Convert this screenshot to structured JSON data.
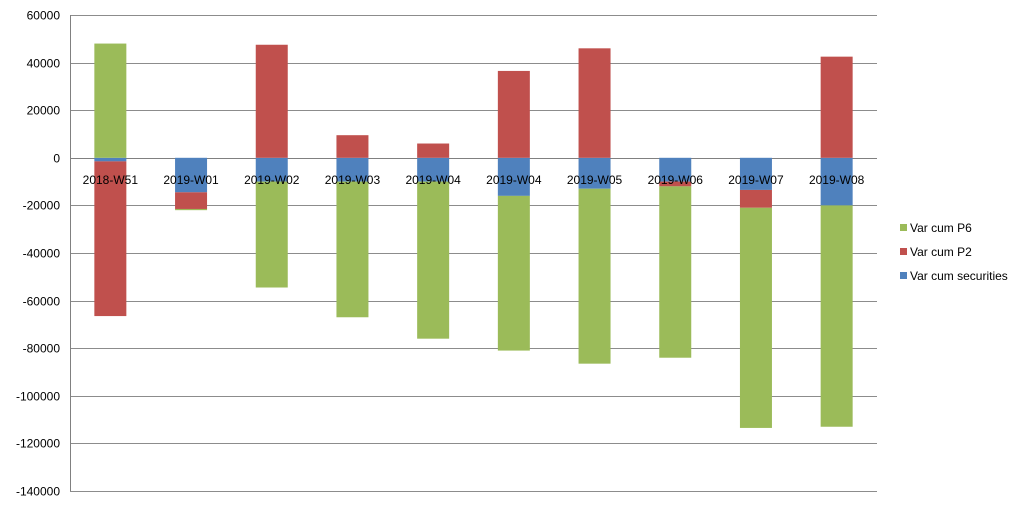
{
  "chart_data": {
    "type": "bar",
    "stacked": true,
    "categories": [
      "2018-W51",
      "2019-W01",
      "2019-W02",
      "2019-W03",
      "2019-W04",
      "2019-W04",
      "2019-W05",
      "2019-W06",
      "2019-W07",
      "2019-W08"
    ],
    "y_ticks": [
      60000,
      40000,
      20000,
      0,
      -20000,
      -40000,
      -60000,
      -80000,
      -100000,
      -120000,
      -140000
    ],
    "ylim": [
      -140000,
      60000
    ],
    "grid": true,
    "legend_position": "right",
    "series": [
      {
        "name": "Var cum securities",
        "color": "#4F81BD",
        "values": [
          -1500,
          -14500,
          -10000,
          -10000,
          -10000,
          -16000,
          -13000,
          -10000,
          -13500,
          -20000
        ]
      },
      {
        "name": "Var cum P2",
        "color": "#C0504D",
        "values": [
          -65000,
          -7000,
          47500,
          9500,
          6000,
          36500,
          46000,
          -2000,
          -7500,
          42500
        ]
      },
      {
        "name": "Var cum P6",
        "color": "#9BBB59",
        "values": [
          48000,
          -500,
          -44500,
          -57000,
          -66000,
          -65000,
          -73500,
          -72000,
          -92500,
          -93000
        ]
      }
    ],
    "legend_order": [
      "Var cum P6",
      "Var cum P2",
      "Var cum securities"
    ]
  }
}
